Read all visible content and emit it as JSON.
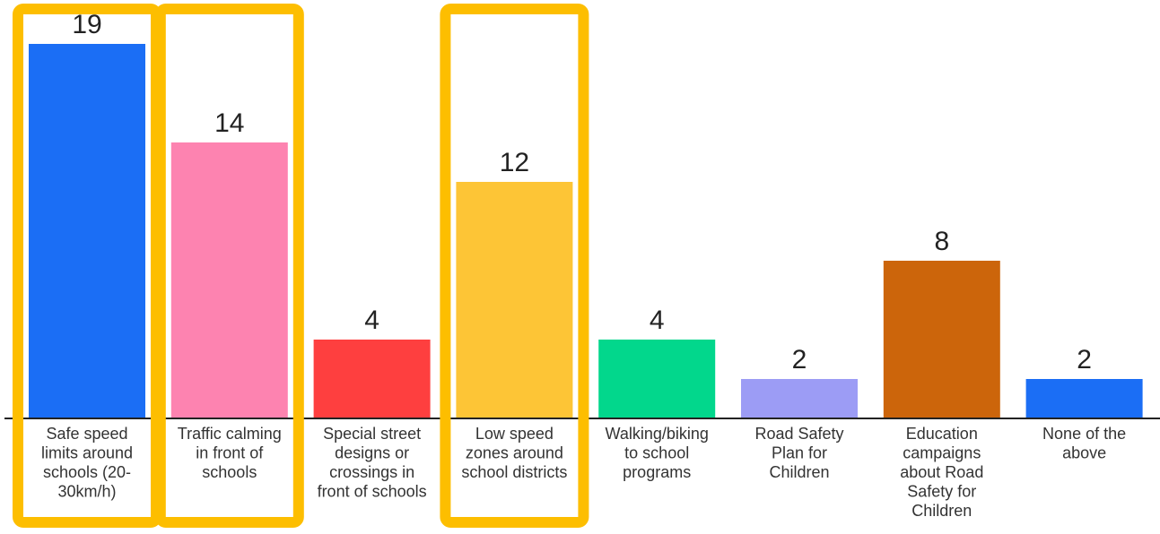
{
  "chart_data": {
    "type": "bar",
    "categories": [
      [
        "Safe speed",
        "limits around",
        "schools (20-",
        "30km/h)"
      ],
      [
        "Traffic calming",
        "in front of",
        "schools"
      ],
      [
        "Special street",
        "designs or",
        "crossings in",
        "front of schools"
      ],
      [
        "Low speed",
        "zones around",
        "school districts"
      ],
      [
        "Walking/biking",
        "to school",
        "programs"
      ],
      [
        "Road Safety",
        "Plan for",
        "Children"
      ],
      [
        "Education",
        "campaigns",
        "about Road",
        "Safety for",
        "Children"
      ],
      [
        "None of the",
        "above"
      ]
    ],
    "values": [
      19,
      14,
      4,
      12,
      4,
      2,
      8,
      2
    ],
    "colors": [
      "#1b6ef5",
      "#fd83b0",
      "#fe3f3f",
      "#fdc536",
      "#02d78c",
      "#9c9cf5",
      "#cc650b",
      "#1b6ef5"
    ],
    "ylim": [
      0,
      20
    ],
    "highlighted": [
      0,
      1,
      3
    ],
    "highlight_color": "#fdbe00"
  }
}
